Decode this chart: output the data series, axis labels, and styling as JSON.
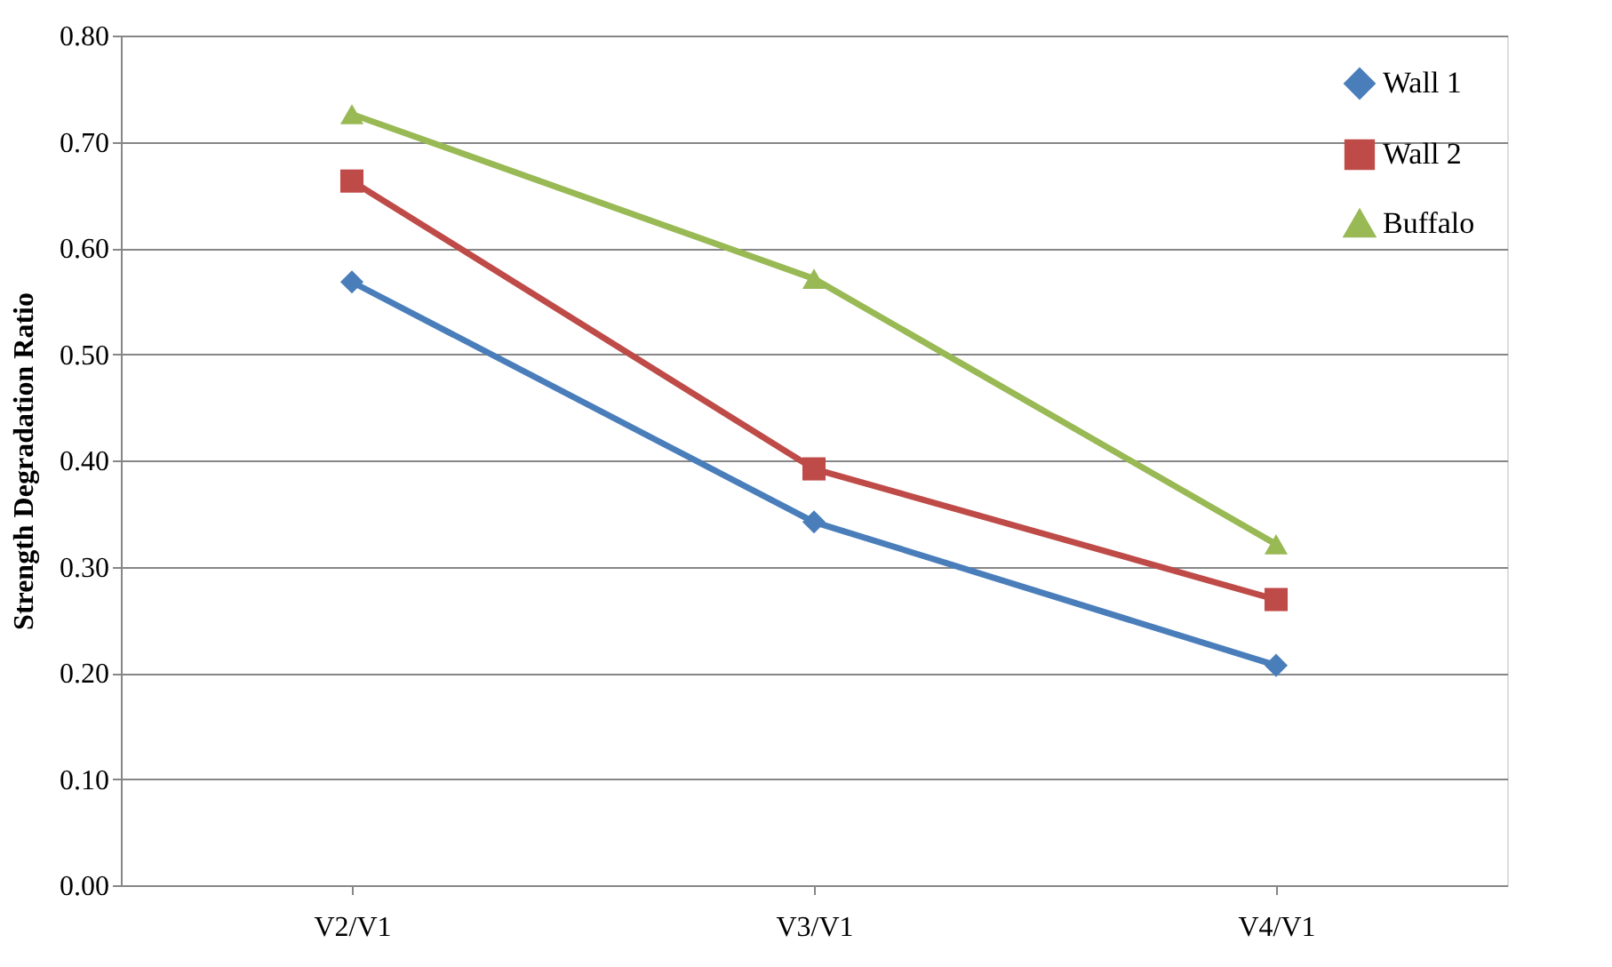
{
  "chart_data": {
    "type": "line",
    "ylabel": "Strength Degradation Ratio",
    "categories": [
      "V2/V1",
      "V3/V1",
      "V4/V1"
    ],
    "series": [
      {
        "name": "Wall 1",
        "color": "#4a7ebb",
        "marker": "diamond",
        "values": [
          0.568,
          0.342,
          0.207
        ]
      },
      {
        "name": "Wall 2",
        "color": "#be4b48",
        "marker": "square",
        "values": [
          0.663,
          0.392,
          0.269
        ]
      },
      {
        "name": "Buffalo",
        "color": "#98b954",
        "marker": "triangle",
        "values": [
          0.726,
          0.571,
          0.321
        ]
      }
    ],
    "ylim": [
      0,
      0.8
    ],
    "yticks": [
      {
        "value": 0,
        "label": "0.00"
      },
      {
        "value": 0.1,
        "label": "0.10"
      },
      {
        "value": 0.2,
        "label": "0.20"
      },
      {
        "value": 0.3,
        "label": "0.30"
      },
      {
        "value": 0.4,
        "label": "0.40"
      },
      {
        "value": 0.5,
        "label": "0.50"
      },
      {
        "value": 0.6,
        "label": "0.60"
      },
      {
        "value": 0.7,
        "label": "0.70"
      },
      {
        "value": 0.8,
        "label": "0.80"
      }
    ],
    "grid": "y",
    "legend": "top right",
    "line_style": "solid"
  }
}
